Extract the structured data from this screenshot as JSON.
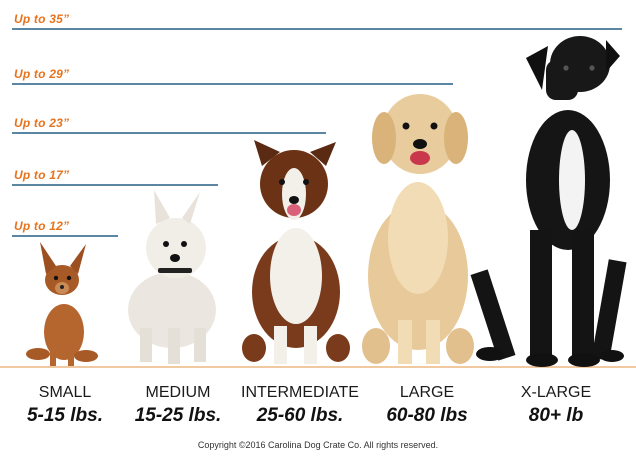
{
  "height_markers": [
    {
      "label": "Up to 35”"
    },
    {
      "label": "Up to 29”"
    },
    {
      "label": "Up to 23”"
    },
    {
      "label": "Up to 17”"
    },
    {
      "label": "Up to 12”"
    }
  ],
  "sizes": [
    {
      "name": "SMALL",
      "weight": "5-15 lbs."
    },
    {
      "name": "MEDIUM",
      "weight": "15-25 lbs."
    },
    {
      "name": "INTERMEDIATE",
      "weight": "25-60 lbs."
    },
    {
      "name": "LARGE",
      "weight": "60-80 lbs"
    },
    {
      "name": "X-LARGE",
      "weight": "80+ lb"
    }
  ],
  "dogs": [
    {
      "icon": "chihuahua-dog-icon"
    },
    {
      "icon": "westie-dog-icon"
    },
    {
      "icon": "australian-shepherd-dog-icon"
    },
    {
      "icon": "golden-retriever-dog-icon"
    },
    {
      "icon": "great-dane-dog-icon"
    }
  ],
  "colors": {
    "marker_line": "#5a86a3",
    "marker_text": "#e6731e"
  },
  "copyright": "Copyright ©2016 Carolina Dog Crate Co. All rights reserved."
}
